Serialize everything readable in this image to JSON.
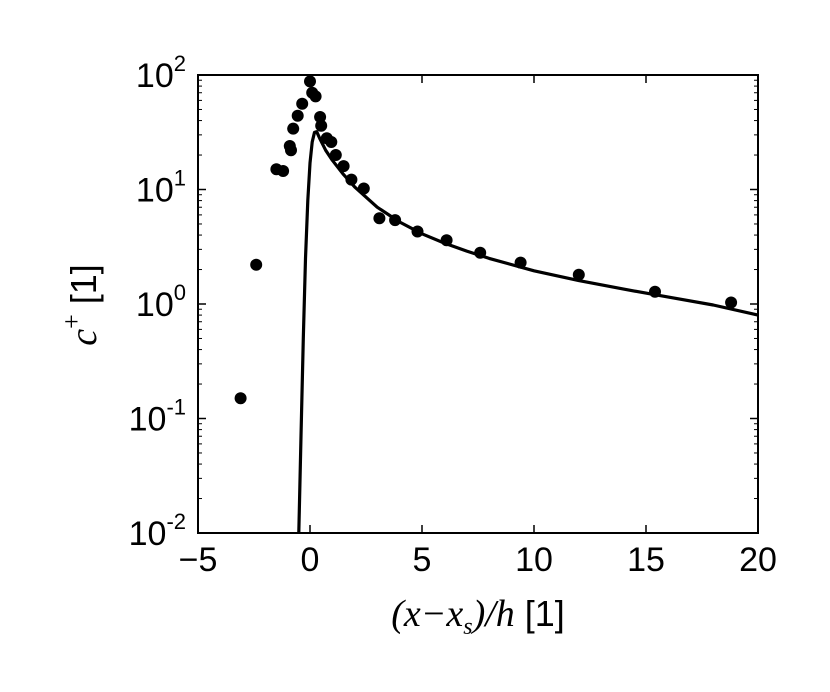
{
  "chart_data": {
    "type": "scatter",
    "title": "",
    "xlabel": {
      "math": "(x−x",
      "sub": "s",
      "math2": ")/h",
      "unit": " [1]"
    },
    "ylabel": {
      "math": "c",
      "sup": "+",
      "unit": " [1]"
    },
    "xlim": [
      -5,
      20
    ],
    "ylim": [
      0.01,
      100
    ],
    "yscale": "log",
    "grid": false,
    "legend": "none",
    "x_ticks": [
      {
        "value": -5,
        "label": "−5"
      },
      {
        "value": 0,
        "label": "0"
      },
      {
        "value": 5,
        "label": "5"
      },
      {
        "value": 10,
        "label": "10"
      },
      {
        "value": 15,
        "label": "15"
      },
      {
        "value": 20,
        "label": "20"
      }
    ],
    "y_ticks": [
      {
        "value": 0.01,
        "base": "10",
        "exp": "-2"
      },
      {
        "value": 0.1,
        "base": "10",
        "exp": "-1"
      },
      {
        "value": 1,
        "base": "10",
        "exp": "0"
      },
      {
        "value": 10,
        "base": "10",
        "exp": "1"
      },
      {
        "value": 100,
        "base": "10",
        "exp": "2"
      }
    ],
    "series": [
      {
        "kind": "markers",
        "color": "#000000",
        "points": [
          [
            -3.1,
            0.15
          ],
          [
            -2.4,
            2.2
          ],
          [
            -1.5,
            15
          ],
          [
            -1.2,
            14.5
          ],
          [
            -0.9,
            24
          ],
          [
            -0.85,
            22
          ],
          [
            -0.75,
            34
          ],
          [
            -0.55,
            44
          ],
          [
            -0.35,
            56
          ],
          [
            0.0,
            88
          ],
          [
            0.1,
            70
          ],
          [
            0.25,
            65
          ],
          [
            0.45,
            43
          ],
          [
            0.5,
            36
          ],
          [
            0.75,
            28
          ],
          [
            0.95,
            26
          ],
          [
            1.15,
            20
          ],
          [
            1.5,
            16
          ],
          [
            1.85,
            12.2
          ],
          [
            2.4,
            10.2
          ],
          [
            3.1,
            5.6
          ],
          [
            3.8,
            5.4
          ],
          [
            4.8,
            4.3
          ],
          [
            6.1,
            3.6
          ],
          [
            7.6,
            2.8
          ],
          [
            9.4,
            2.3
          ],
          [
            12.0,
            1.8
          ],
          [
            15.4,
            1.28
          ],
          [
            18.8,
            1.03
          ]
        ]
      },
      {
        "kind": "line",
        "color": "#000000",
        "points": [
          [
            -0.5,
            0.01
          ],
          [
            -0.4,
            0.07
          ],
          [
            -0.3,
            0.5
          ],
          [
            -0.2,
            2.5
          ],
          [
            -0.1,
            8
          ],
          [
            0.0,
            17
          ],
          [
            0.1,
            26
          ],
          [
            0.2,
            31.5
          ],
          [
            0.3,
            32
          ],
          [
            0.45,
            27.5
          ],
          [
            0.7,
            22
          ],
          [
            1.0,
            18
          ],
          [
            1.5,
            13.5
          ],
          [
            2.0,
            10.5
          ],
          [
            3.0,
            7.0
          ],
          [
            4.0,
            5.2
          ],
          [
            5.0,
            4.1
          ],
          [
            6.0,
            3.4
          ],
          [
            7.0,
            2.9
          ],
          [
            8.0,
            2.5
          ],
          [
            10.0,
            1.95
          ],
          [
            12.0,
            1.6
          ],
          [
            14.0,
            1.35
          ],
          [
            16.0,
            1.15
          ],
          [
            18.0,
            0.98
          ],
          [
            20.0,
            0.8
          ]
        ]
      }
    ]
  }
}
